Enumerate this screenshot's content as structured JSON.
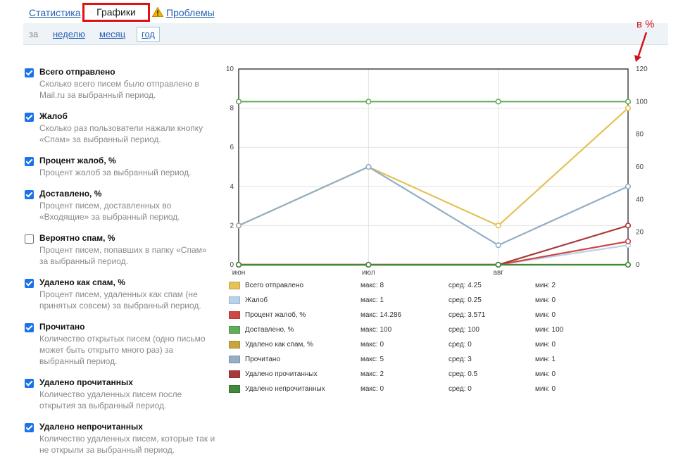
{
  "tabs": {
    "stats": "Статистика",
    "graphs": "Графики",
    "problems": "Проблемы"
  },
  "period": {
    "label": "за",
    "week": "неделю",
    "month": "месяц",
    "year": "год",
    "selected": "год"
  },
  "annotation": {
    "text": "в %"
  },
  "metrics": [
    {
      "title": "Всего отправлено",
      "desc": "Сколько всего писем было отправлено в Mail.ru за выбранный период.",
      "checked": true
    },
    {
      "title": "Жалоб",
      "desc": "Сколько раз пользователи нажали кнопку «Спам» за выбранный период.",
      "checked": true
    },
    {
      "title": "Процент жалоб, %",
      "desc": "Процент жалоб за выбранный период.",
      "checked": true
    },
    {
      "title": "Доставлено, %",
      "desc": "Процент писем, доставленных во «Входящие» за выбранный период.",
      "checked": true
    },
    {
      "title": "Вероятно спам, %",
      "desc": "Процент писем, попавших в папку «Спам» за выбранный период.",
      "checked": false
    },
    {
      "title": "Удалено как спам, %",
      "desc": "Процент писем, удаленных как спам (не принятых совсем) за выбранный период.",
      "checked": true
    },
    {
      "title": "Прочитано",
      "desc": "Количество открытых писем (одно письмо может быть открыто много раз) за выбранный период.",
      "checked": true
    },
    {
      "title": "Удалено прочитанных",
      "desc": "Количество удаленных писем после открытия за выбранный период.",
      "checked": true
    },
    {
      "title": "Удалено непрочитанных",
      "desc": "Количество удаленных писем, которые так и не открыли за выбранный период.",
      "checked": true
    }
  ],
  "chart_data": {
    "type": "line",
    "title": "",
    "x": [
      "июн",
      "июл",
      "авг",
      ""
    ],
    "left_axis": {
      "ylim": [
        0,
        10
      ],
      "ticks": [
        "0",
        "2",
        "4",
        "6",
        "8",
        "10"
      ]
    },
    "right_axis": {
      "ylim": [
        0,
        120
      ],
      "ticks": [
        "0",
        "20",
        "40",
        "60",
        "80",
        "100",
        "120"
      ]
    },
    "grid": true,
    "series": [
      {
        "name": "Всего отправлено",
        "axis": "left",
        "color": "#e5c158",
        "values": [
          2,
          5,
          2,
          8
        ],
        "max": "макс: 8",
        "avg": "сред: 4.25",
        "min": "мин: 2"
      },
      {
        "name": "Жалоб",
        "axis": "left",
        "color": "#b7d3ea",
        "values": [
          0,
          0,
          0,
          1
        ],
        "max": "макс: 1",
        "avg": "сред: 0.25",
        "min": "мин: 0"
      },
      {
        "name": "Процент жалоб, %",
        "axis": "right",
        "color": "#cf4646",
        "values": [
          0,
          0,
          0,
          14.286
        ],
        "max": "макс: 14.286",
        "avg": "сред: 3.571",
        "min": "мин: 0"
      },
      {
        "name": "Доставлено, %",
        "axis": "right",
        "color": "#62ad5b",
        "values": [
          100,
          100,
          100,
          100
        ],
        "max": "макс: 100",
        "avg": "сред: 100",
        "min": "мин: 100"
      },
      {
        "name": "Удалено как спам, %",
        "axis": "right",
        "color": "#c5a53c",
        "values": [
          0,
          0,
          0,
          0
        ],
        "max": "макс: 0",
        "avg": "сред: 0",
        "min": "мин: 0"
      },
      {
        "name": "Прочитано",
        "axis": "left",
        "color": "#93aec5",
        "values": [
          2,
          5,
          1,
          4
        ],
        "max": "макс: 5",
        "avg": "сред: 3",
        "min": "мин: 1"
      },
      {
        "name": "Удалено прочитанных",
        "axis": "left",
        "color": "#a83a3a",
        "values": [
          0,
          0,
          0,
          2
        ],
        "max": "макс: 2",
        "avg": "сред: 0.5",
        "min": "мин: 0"
      },
      {
        "name": "Удалено непрочитанных",
        "axis": "left",
        "color": "#3e8a3a",
        "values": [
          0,
          0,
          0,
          0
        ],
        "max": "макс: 0",
        "avg": "сред: 0",
        "min": "мин: 0"
      }
    ]
  }
}
